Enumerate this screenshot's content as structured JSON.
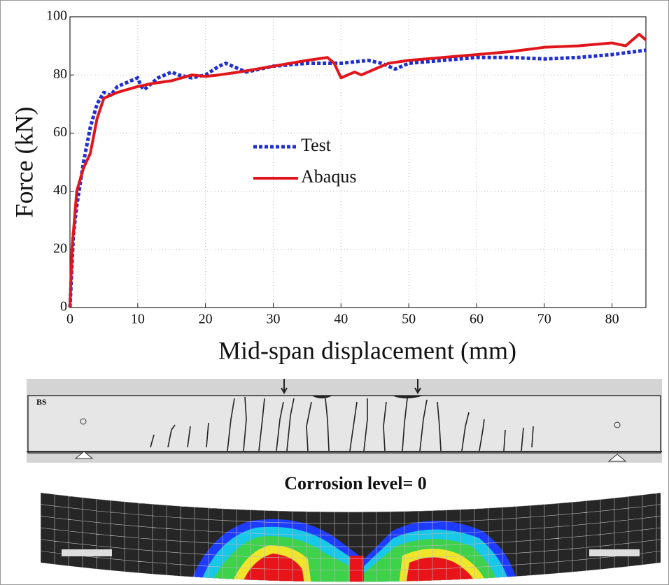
{
  "chart_data": {
    "type": "line",
    "ylabel": "Force (kN)",
    "xlabel": "Mid-span displacement (mm)",
    "caption": "Corrosion level= 0",
    "specimen_label": "BS",
    "xlim": [
      0,
      85
    ],
    "ylim": [
      0,
      100
    ],
    "xticks": [
      0,
      10,
      20,
      30,
      40,
      50,
      60,
      70,
      80
    ],
    "yticks": [
      0,
      20,
      40,
      60,
      80,
      100
    ],
    "grid": true,
    "series": [
      {
        "name": "Test",
        "color": "#1f2fd0",
        "line_style": "dotted",
        "x": [
          0,
          0.5,
          1,
          2,
          3,
          4,
          5,
          6,
          7,
          8,
          9,
          10,
          10.5,
          11,
          12,
          13,
          15,
          16,
          18,
          20,
          22,
          23,
          25,
          26,
          30,
          35,
          38,
          40,
          44,
          46,
          48,
          50,
          55,
          60,
          65,
          70,
          75,
          80,
          85
        ],
        "values": [
          0,
          25,
          35,
          50,
          62,
          70,
          74,
          73,
          76,
          77,
          78,
          79,
          76,
          75,
          77,
          79,
          81,
          80,
          79,
          80,
          83,
          84,
          82,
          81,
          83,
          84,
          84,
          84,
          85,
          84,
          82,
          84,
          85,
          86,
          86,
          85.5,
          86,
          87,
          88.5
        ]
      },
      {
        "name": "Abaqus",
        "color": "#e0161b",
        "line_style": "solid",
        "x": [
          0,
          0.3,
          1,
          2,
          3,
          4,
          5,
          7,
          10,
          12,
          15,
          18,
          20,
          22,
          25,
          30,
          35,
          38,
          39,
          40,
          42,
          43,
          45,
          47,
          50,
          55,
          60,
          65,
          70,
          75,
          80,
          82,
          84,
          85
        ],
        "values": [
          0,
          20,
          40,
          48,
          53,
          65,
          72,
          74,
          76,
          77,
          78,
          80,
          79.5,
          80,
          81,
          83,
          85,
          86,
          84,
          79,
          81,
          80,
          82,
          84,
          85,
          86,
          87,
          88,
          89.5,
          90,
          91,
          90,
          94,
          92
        ]
      }
    ]
  }
}
